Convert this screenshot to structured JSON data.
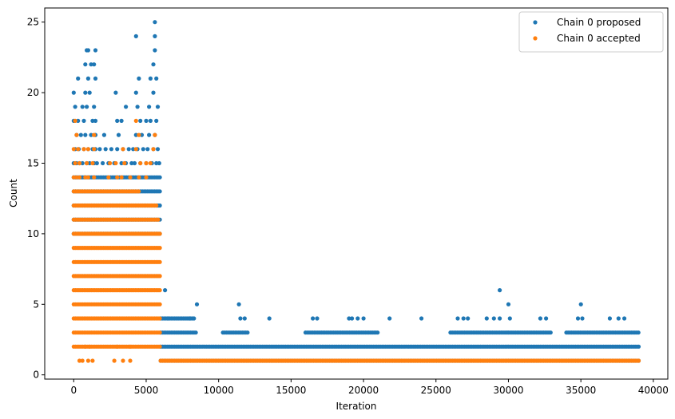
{
  "chart_data": {
    "type": "scatter",
    "title": "",
    "xlabel": "Iteration",
    "ylabel": "Count",
    "xlim": [
      -2000,
      41000
    ],
    "ylim": [
      -0.3,
      26
    ],
    "xticks": [
      0,
      5000,
      10000,
      15000,
      20000,
      25000,
      30000,
      35000,
      40000
    ],
    "yticks": [
      0,
      5,
      10,
      15,
      20,
      25
    ],
    "grid": false,
    "legend_position": "top-right",
    "series": [
      {
        "name": "Chain 0 proposed",
        "color": "#1f77b4",
        "bands": [
          {
            "y": 1,
            "x": [
              6000,
              39000
            ]
          },
          {
            "y": 2,
            "x": [
              6000,
              39000
            ]
          },
          {
            "y": 3,
            "x": [
              6000,
              8500
            ]
          },
          {
            "y": 3,
            "x": [
              10300,
              12000
            ]
          },
          {
            "y": 3,
            "x": [
              16000,
              21000
            ]
          },
          {
            "y": 3,
            "x": [
              26000,
              33000
            ]
          },
          {
            "y": 3,
            "x": [
              34000,
              39000
            ]
          },
          {
            "y": 4,
            "x": [
              6000,
              8300
            ]
          },
          {
            "y": 10,
            "x": [
              0,
              6000
            ]
          },
          {
            "y": 11,
            "x": [
              0,
              6000
            ]
          },
          {
            "y": 12,
            "x": [
              0,
              6000
            ]
          },
          {
            "y": 13,
            "x": [
              0,
              6000
            ]
          },
          {
            "y": 14,
            "x": [
              0,
              6000
            ]
          }
        ],
        "x": [
          8000,
          8300,
          6500,
          11500,
          11800,
          13500,
          16500,
          16800,
          19000,
          19200,
          19600,
          20000,
          21800,
          24000,
          26500,
          26900,
          27200,
          28500,
          29000,
          29400,
          30100,
          32200,
          32600,
          34800,
          35100,
          37000,
          37600,
          38000,
          11400,
          8500,
          6300,
          30000,
          29400,
          35000,
          0,
          200,
          400,
          600,
          900,
          1100,
          1400,
          1600,
          2000,
          2400,
          2800,
          3300,
          3600,
          4000,
          4200,
          4600,
          5000,
          5400,
          5700,
          5900,
          100,
          350,
          700,
          1000,
          1300,
          1500,
          1800,
          2200,
          2600,
          3000,
          3400,
          3800,
          4100,
          4400,
          4800,
          5100,
          5500,
          5800,
          200,
          500,
          800,
          1200,
          1500,
          2100,
          3100,
          4300,
          4700,
          5200,
          5600,
          0,
          300,
          700,
          1300,
          1500,
          3000,
          3300,
          4600,
          5000,
          5300,
          5700,
          100,
          600,
          900,
          1400,
          3600,
          4400,
          5200,
          5800,
          0,
          800,
          1100,
          2900,
          4300,
          5500,
          300,
          1000,
          1500,
          4500,
          5300,
          5700,
          800,
          1400,
          5500,
          1000,
          1500,
          5600,
          900,
          1200,
          5600,
          4300,
          5600
        ],
        "y": [
          4,
          4,
          4,
          4,
          4,
          4,
          4,
          4,
          4,
          4,
          4,
          4,
          4,
          4,
          4,
          4,
          4,
          4,
          4,
          4,
          4,
          4,
          4,
          4,
          4,
          4,
          4,
          4,
          5,
          5,
          6,
          5,
          6,
          5,
          15,
          15,
          15,
          15,
          15,
          15,
          15,
          15,
          15,
          15,
          15,
          15,
          15,
          15,
          15,
          15,
          15,
          15,
          15,
          15,
          16,
          16,
          16,
          16,
          16,
          16,
          16,
          16,
          16,
          16,
          16,
          16,
          16,
          16,
          16,
          16,
          16,
          16,
          17,
          17,
          17,
          17,
          17,
          17,
          17,
          17,
          17,
          17,
          17,
          18,
          18,
          18,
          18,
          18,
          18,
          18,
          18,
          18,
          18,
          18,
          19,
          19,
          19,
          19,
          19,
          19,
          19,
          19,
          20,
          20,
          20,
          20,
          20,
          20,
          21,
          21,
          21,
          21,
          21,
          21,
          22,
          22,
          22,
          23,
          23,
          23,
          23,
          22,
          24,
          24,
          25
        ]
      },
      {
        "name": "Chain 0 accepted",
        "color": "#ff7f0e",
        "bands": [
          {
            "y": 1,
            "x": [
              6000,
              39000
            ]
          },
          {
            "y": 2,
            "x": [
              0,
              6000
            ]
          },
          {
            "y": 3,
            "x": [
              0,
              6000
            ]
          },
          {
            "y": 4,
            "x": [
              0,
              6000
            ]
          },
          {
            "y": 5,
            "x": [
              0,
              6000
            ]
          },
          {
            "y": 6,
            "x": [
              0,
              6000
            ]
          },
          {
            "y": 7,
            "x": [
              0,
              6000
            ]
          },
          {
            "y": 8,
            "x": [
              0,
              6000
            ]
          },
          {
            "y": 9,
            "x": [
              0,
              6000
            ]
          },
          {
            "y": 10,
            "x": [
              0,
              6000
            ]
          },
          {
            "y": 11,
            "x": [
              0,
              5900
            ]
          },
          {
            "y": 12,
            "x": [
              0,
              5700
            ]
          },
          {
            "y": 13,
            "x": [
              0,
              4500
            ]
          }
        ],
        "x": [
          0,
          200,
          400,
          800,
          1000,
          1400,
          2400,
          3000,
          3300,
          3900,
          4500,
          5000,
          100,
          400,
          900,
          1300,
          2500,
          2900,
          3500,
          4600,
          5000,
          5300,
          0,
          300,
          700,
          1000,
          1400,
          3400,
          4300,
          5500,
          200,
          1400,
          4500,
          5600,
          100,
          4300,
          400,
          600,
          1000,
          1300,
          2800,
          3400,
          3900,
          800,
          1100,
          3000,
          3900
        ],
        "y": [
          14,
          14,
          14,
          14,
          14,
          14,
          14,
          14,
          14,
          14,
          14,
          14,
          15,
          15,
          15,
          15,
          15,
          15,
          15,
          15,
          15,
          15,
          16,
          16,
          16,
          16,
          16,
          16,
          16,
          16,
          17,
          17,
          17,
          17,
          18,
          18,
          1,
          1,
          1,
          1,
          1,
          1,
          1,
          2,
          2,
          2,
          2
        ]
      }
    ]
  }
}
